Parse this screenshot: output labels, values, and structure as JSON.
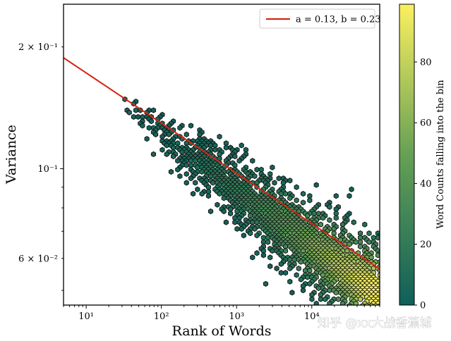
{
  "chart_data": {
    "type": "hexbin",
    "xlabel": "Rank of Words",
    "ylabel": "Variance",
    "xscale": "log",
    "yscale": "log",
    "xlim": [
      5,
      80000
    ],
    "ylim": [
      0.046,
      0.255
    ],
    "xticks": [
      {
        "value": 10,
        "label": "10¹"
      },
      {
        "value": 100,
        "label": "10²"
      },
      {
        "value": 1000,
        "label": "10³"
      },
      {
        "value": 10000,
        "label": "10⁴"
      }
    ],
    "yticks": [
      {
        "value": 0.06,
        "label": "6 × 10⁻²"
      },
      {
        "value": 0.1,
        "label": "10⁻¹"
      },
      {
        "value": 0.2,
        "label": "2 × 10⁻¹"
      }
    ],
    "fit_line": {
      "label": "a = 0.13, b = 0.23",
      "color": "#d62414",
      "x": [
        5,
        80000
      ],
      "y": [
        0.188,
        0.0565
      ]
    },
    "colorbar": {
      "label": "Word Counts falling into the bin",
      "colormap": "summer",
      "range": [
        0,
        99
      ],
      "ticks": [
        0,
        20,
        40,
        60,
        80
      ],
      "tick_labels": [
        "0",
        "20",
        "40",
        "60",
        "80"
      ],
      "color_low": "#0f5f5a",
      "color_mid": "#66a055",
      "color_high": "#fbf060"
    },
    "legend": {
      "position": "top-right"
    },
    "hexbin_edge_color": "#111111"
  },
  "watermark": "知乎 @xx大战香蕉城"
}
